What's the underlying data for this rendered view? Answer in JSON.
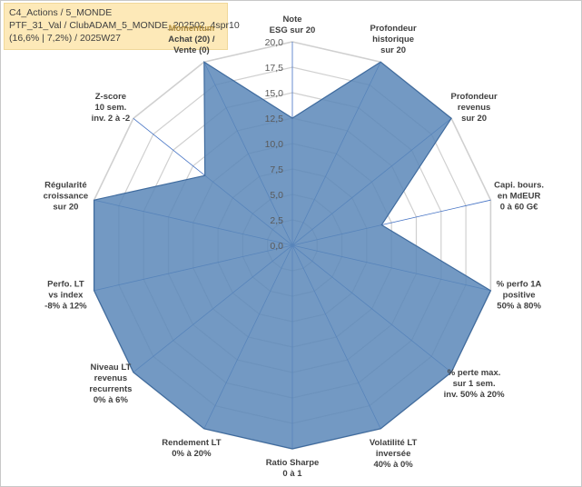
{
  "title_box": {
    "line1": "C4_Actions / 5_MONDE",
    "line2": "PTF_31_Val / ClubADAM_5_MONDE_202502_4spr10",
    "line3": "(16,6% | 7,2%) / 2025W27"
  },
  "colors": {
    "fill": "#5b87b8",
    "stroke": "#3f6b9e",
    "grid": "#d0d0d0",
    "spoke": "#4472c4",
    "title_bg": "#fde9b8"
  },
  "chart_data": {
    "type": "radar",
    "ylim": [
      0,
      20
    ],
    "ticks": [
      "0,0",
      "2,5",
      "5,0",
      "7,5",
      "10,0",
      "12,5",
      "15,0",
      "17,5",
      "20,0"
    ],
    "axes": [
      {
        "lines": [
          "Note",
          "ESG sur 20"
        ]
      },
      {
        "lines": [
          "Profondeur",
          "historique",
          "sur 20"
        ]
      },
      {
        "lines": [
          "Profondeur",
          "revenus",
          "sur 20"
        ]
      },
      {
        "lines": [
          "Capi. bours.",
          "en MdEUR",
          "0 à 60 G€"
        ]
      },
      {
        "lines": [
          "% perfo 1A",
          "positive",
          "50% à 80%"
        ]
      },
      {
        "lines": [
          "% perte max.",
          "sur 1 sem.",
          "inv. 50% à 20%"
        ]
      },
      {
        "lines": [
          "Volatilité LT",
          "inversée",
          "40% à 0%"
        ]
      },
      {
        "lines": [
          "Ratio Sharpe",
          "0 à 1"
        ]
      },
      {
        "lines": [
          "Rendement LT",
          "0% à 20%"
        ]
      },
      {
        "lines": [
          "Niveau LT",
          "revenus",
          "recurrents",
          "0% à 6%"
        ]
      },
      {
        "lines": [
          "Perfo. LT",
          "vs index",
          "-8% à 12%"
        ]
      },
      {
        "lines": [
          "Régularité",
          "croissance",
          "sur 20"
        ]
      },
      {
        "lines": [
          "Z-score",
          "10 sem.",
          "inv. 2 à -2"
        ]
      },
      {
        "lines": [
          "Momentum",
          "Achat (20) /",
          "Vente (0)"
        ],
        "accent_line": 0
      }
    ],
    "series": [
      {
        "values": [
          12.5,
          20,
          20,
          9,
          20,
          20,
          20,
          20,
          20,
          20,
          20,
          20,
          11,
          20
        ]
      }
    ]
  }
}
